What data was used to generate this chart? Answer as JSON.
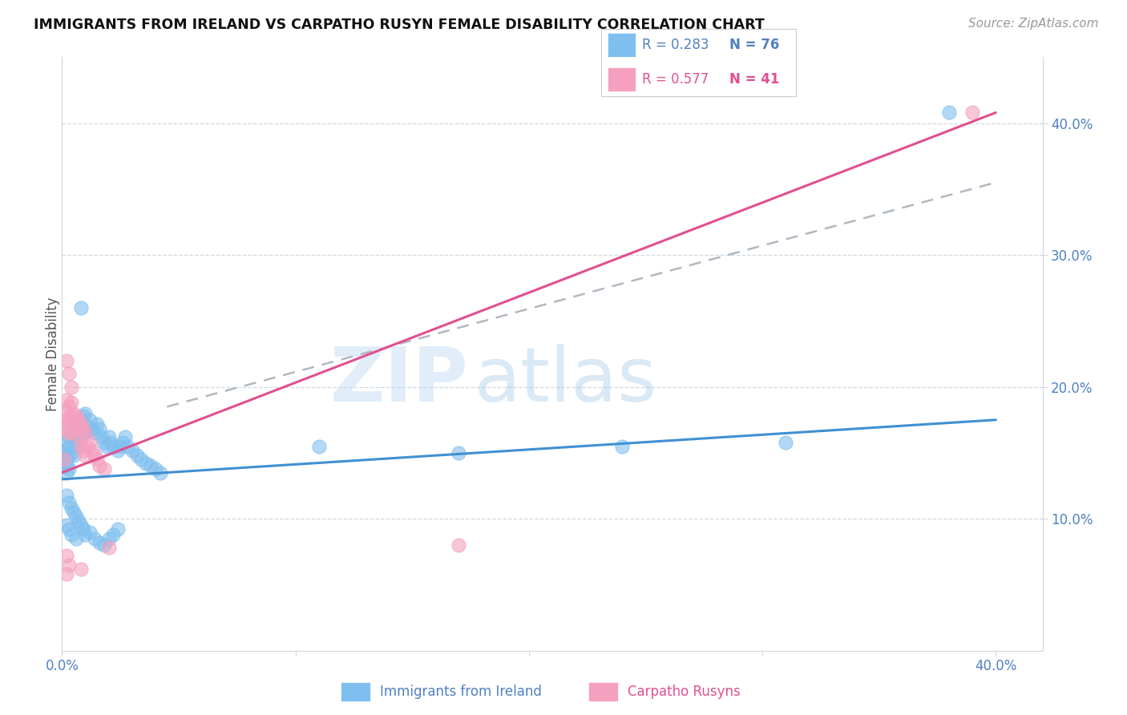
{
  "title": "IMMIGRANTS FROM IRELAND VS CARPATHO RUSYN FEMALE DISABILITY CORRELATION CHART",
  "source": "Source: ZipAtlas.com",
  "ylabel": "Female Disability",
  "xlim": [
    0.0,
    0.42
  ],
  "ylim": [
    0.0,
    0.45
  ],
  "watermark_text": "ZIPatlas",
  "legend_r1": "R = 0.283",
  "legend_n1": "N = 76",
  "legend_r2": "R = 0.577",
  "legend_n2": "N = 41",
  "blue_scatter_color": "#7fbfef",
  "pink_scatter_color": "#f4a0be",
  "blue_line_color": "#4090d0",
  "pink_line_color": "#e05090",
  "dashed_line_color": "#b0b8c0",
  "grid_color": "#d0d8e0",
  "tick_label_color": "#5080c0",
  "ylabel_color": "#555555",
  "title_color": "#111111",
  "source_color": "#999999",
  "background_color": "#ffffff",
  "blue_trend_x": [
    0.0,
    0.4
  ],
  "blue_trend_y": [
    0.13,
    0.175
  ],
  "pink_trend_x": [
    0.0,
    0.4
  ],
  "pink_trend_y": [
    0.135,
    0.408
  ],
  "dashed_trend_x": [
    0.045,
    0.4
  ],
  "dashed_trend_y": [
    0.185,
    0.355
  ],
  "ireland_x": [
    0.001,
    0.001,
    0.001,
    0.002,
    0.002,
    0.002,
    0.002,
    0.003,
    0.003,
    0.003,
    0.003,
    0.004,
    0.004,
    0.005,
    0.005,
    0.005,
    0.006,
    0.006,
    0.007,
    0.007,
    0.008,
    0.008,
    0.009,
    0.009,
    0.01,
    0.01,
    0.011,
    0.012,
    0.013,
    0.014,
    0.015,
    0.016,
    0.017,
    0.018,
    0.019,
    0.02,
    0.021,
    0.022,
    0.024,
    0.025,
    0.026,
    0.027,
    0.028,
    0.03,
    0.032,
    0.034,
    0.036,
    0.038,
    0.04,
    0.042,
    0.002,
    0.003,
    0.004,
    0.005,
    0.006,
    0.007,
    0.008,
    0.009,
    0.01,
    0.012,
    0.014,
    0.016,
    0.018,
    0.02,
    0.022,
    0.024,
    0.11,
    0.17,
    0.24,
    0.31,
    0.38,
    0.002,
    0.003,
    0.004,
    0.006,
    0.008
  ],
  "ireland_y": [
    0.152,
    0.148,
    0.143,
    0.158,
    0.145,
    0.14,
    0.135,
    0.162,
    0.155,
    0.148,
    0.138,
    0.165,
    0.15,
    0.17,
    0.162,
    0.148,
    0.168,
    0.155,
    0.172,
    0.16,
    0.175,
    0.162,
    0.178,
    0.168,
    0.18,
    0.165,
    0.17,
    0.175,
    0.168,
    0.165,
    0.172,
    0.168,
    0.162,
    0.158,
    0.155,
    0.162,
    0.158,
    0.155,
    0.152,
    0.155,
    0.158,
    0.162,
    0.155,
    0.152,
    0.148,
    0.145,
    0.142,
    0.14,
    0.138,
    0.135,
    0.118,
    0.112,
    0.108,
    0.105,
    0.102,
    0.098,
    0.095,
    0.092,
    0.088,
    0.09,
    0.085,
    0.082,
    0.08,
    0.085,
    0.088,
    0.092,
    0.155,
    0.15,
    0.155,
    0.158,
    0.408,
    0.095,
    0.092,
    0.088,
    0.085,
    0.26
  ],
  "rusyn_x": [
    0.001,
    0.001,
    0.002,
    0.002,
    0.002,
    0.003,
    0.003,
    0.003,
    0.004,
    0.004,
    0.004,
    0.005,
    0.005,
    0.006,
    0.006,
    0.007,
    0.007,
    0.008,
    0.008,
    0.009,
    0.009,
    0.01,
    0.01,
    0.011,
    0.012,
    0.013,
    0.014,
    0.015,
    0.016,
    0.018,
    0.001,
    0.002,
    0.003,
    0.004,
    0.17,
    0.002,
    0.02,
    0.003,
    0.002,
    0.008,
    0.39
  ],
  "rusyn_y": [
    0.175,
    0.168,
    0.19,
    0.182,
    0.172,
    0.185,
    0.175,
    0.165,
    0.188,
    0.178,
    0.165,
    0.18,
    0.17,
    0.178,
    0.168,
    0.175,
    0.162,
    0.172,
    0.155,
    0.168,
    0.152,
    0.165,
    0.148,
    0.155,
    0.158,
    0.152,
    0.148,
    0.145,
    0.14,
    0.138,
    0.145,
    0.22,
    0.21,
    0.2,
    0.08,
    0.072,
    0.078,
    0.065,
    0.058,
    0.062,
    0.408
  ]
}
